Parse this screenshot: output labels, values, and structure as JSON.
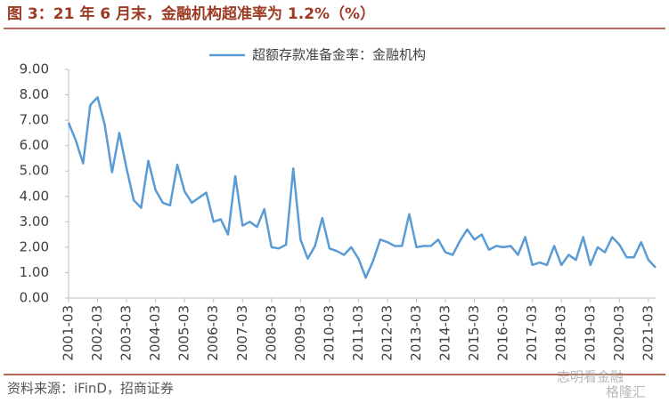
{
  "header": {
    "title": "图 3：21 年 6 月末，金融机构超准率为 1.2%（%）"
  },
  "chart_data": {
    "type": "line",
    "categories": [
      "2001-03",
      null,
      null,
      null,
      "2002-03",
      null,
      null,
      null,
      "2003-03",
      null,
      null,
      null,
      "2004-03",
      null,
      null,
      null,
      "2005-03",
      null,
      null,
      null,
      "2006-03",
      null,
      null,
      null,
      "2007-03",
      null,
      null,
      null,
      "2008-03",
      null,
      null,
      null,
      "2009-03",
      null,
      null,
      null,
      "2010-03",
      null,
      null,
      null,
      "2011-03",
      null,
      null,
      null,
      "2012-03",
      null,
      null,
      null,
      "2013-03",
      null,
      null,
      null,
      "2014-03",
      null,
      null,
      null,
      "2015-03",
      null,
      null,
      null,
      "2016-03",
      null,
      null,
      null,
      "2017-03",
      null,
      null,
      null,
      "2018-03",
      null,
      null,
      null,
      "2019-03",
      null,
      null,
      null,
      "2020-03",
      null,
      null,
      null,
      "2021-03",
      null
    ],
    "series": [
      {
        "name": "超额存款准备金率：金融机构",
        "color": "#5b9bd5",
        "values": [
          6.9,
          6.2,
          5.3,
          7.6,
          7.9,
          6.8,
          4.95,
          6.5,
          5.1,
          3.85,
          3.55,
          5.4,
          4.25,
          3.75,
          3.65,
          5.25,
          4.2,
          3.75,
          3.95,
          4.15,
          3.0,
          3.1,
          2.5,
          4.8,
          2.85,
          3.0,
          2.8,
          3.5,
          2.0,
          1.95,
          2.1,
          5.1,
          2.3,
          1.55,
          2.05,
          3.15,
          1.95,
          1.85,
          1.7,
          2.0,
          1.55,
          0.8,
          1.45,
          2.3,
          2.2,
          2.05,
          2.05,
          3.3,
          2.0,
          2.05,
          2.05,
          2.3,
          1.8,
          1.7,
          2.25,
          2.7,
          2.3,
          2.5,
          1.9,
          2.05,
          2.0,
          2.05,
          1.7,
          2.4,
          1.3,
          1.4,
          1.3,
          2.05,
          1.3,
          1.7,
          1.5,
          2.4,
          1.3,
          2.0,
          1.8,
          2.4,
          2.1,
          1.6,
          1.6,
          2.2,
          1.5,
          1.2
        ]
      }
    ],
    "ylim": [
      0,
      9
    ],
    "yticks": [
      {
        "value": 0,
        "label": "0.00"
      },
      {
        "value": 1,
        "label": "1.00"
      },
      {
        "value": 2,
        "label": "2.00"
      },
      {
        "value": 3,
        "label": "3.00"
      },
      {
        "value": 4,
        "label": "4.00"
      },
      {
        "value": 5,
        "label": "5.00"
      },
      {
        "value": 6,
        "label": "6.00"
      },
      {
        "value": 7,
        "label": "7.00"
      },
      {
        "value": 8,
        "label": "8.00"
      },
      {
        "value": 9,
        "label": "9.00"
      }
    ],
    "grid": false,
    "legend": "top"
  },
  "footer": {
    "source": "资料来源：iFinD，招商证券"
  },
  "watermark": {
    "text1": "志明看金融",
    "text2": "格隆汇"
  }
}
